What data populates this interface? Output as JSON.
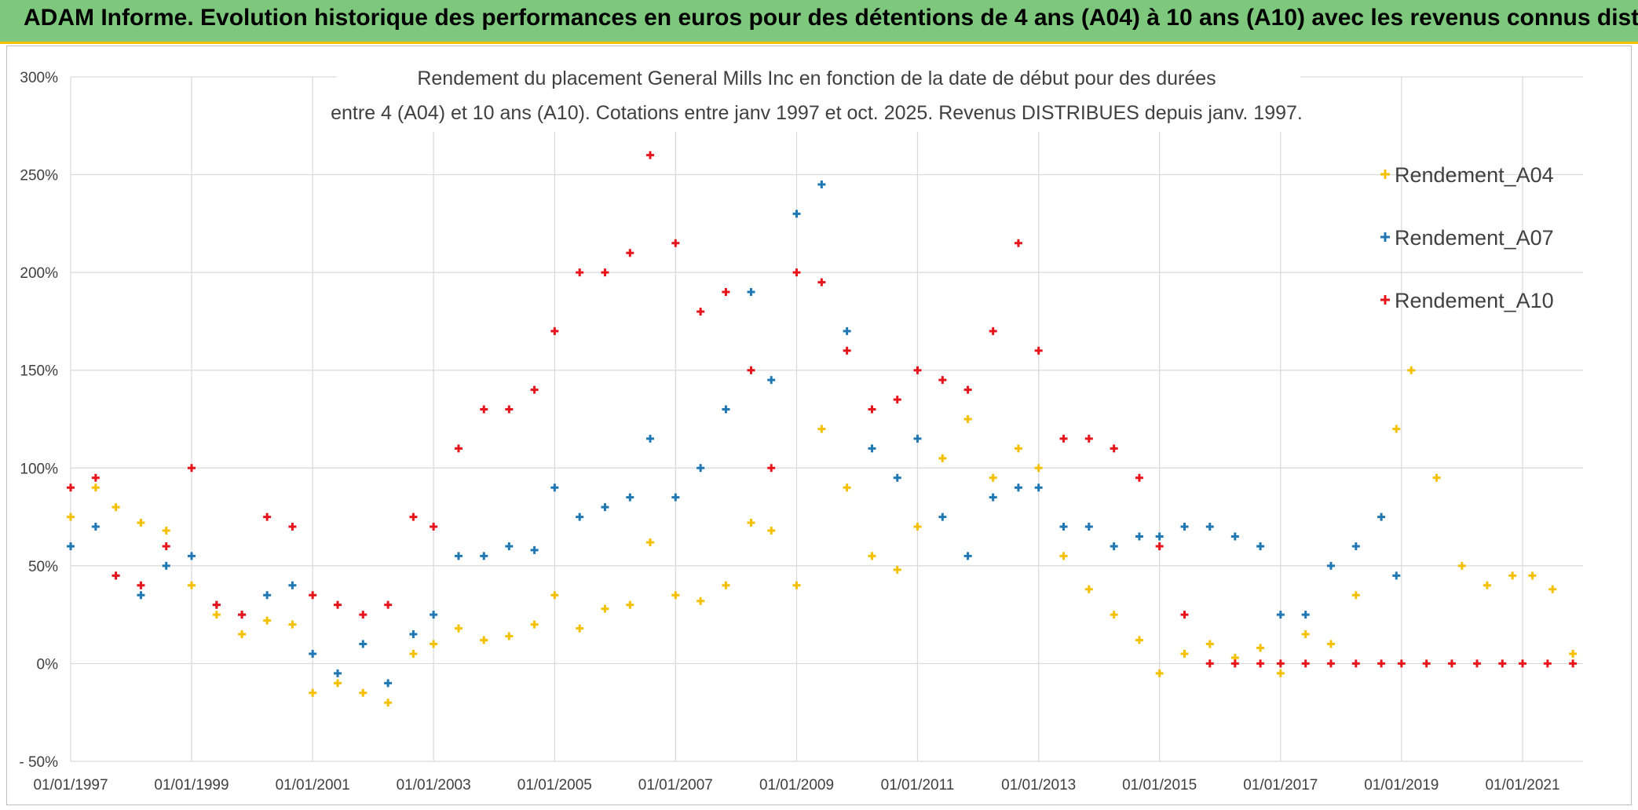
{
  "header": {
    "title": "ADAM Informe. Evolution historique des performances en euros pour des détentions de 4 ans (A04) à 10 ans (A10) avec les revenus connus distribués"
  },
  "colors": {
    "header_bg": "#7dc87d",
    "header_border": "#f5c000",
    "A04": "#f5c000",
    "A07": "#1f77b4",
    "A10": "#e8141c"
  },
  "chart_data": {
    "type": "scatter",
    "title_lines": [
      "Rendement du placement General Mills Inc en fonction de la date de début pour des durées",
      "entre 4 (A04) et 10 ans (A10). Cotations entre janv 1997 et oct. 2025. Revenus DISTRIBUES depuis janv. 1997."
    ],
    "xlim": [
      "1997-01-01",
      "2022-01-01"
    ],
    "ylim": [
      -50,
      300
    ],
    "x_ticks": [
      "01/01/1997",
      "01/01/1999",
      "01/01/2001",
      "01/01/2003",
      "01/01/2005",
      "01/01/2007",
      "01/01/2009",
      "01/01/2011",
      "01/01/2013",
      "01/01/2015",
      "01/01/2017",
      "01/01/2019",
      "01/01/2021"
    ],
    "y_ticks": [
      "- 50%",
      "0%",
      "50%",
      "100%",
      "150%",
      "200%",
      "250%",
      "300%"
    ],
    "legend_position": "top-right",
    "grid": true,
    "marker": "+",
    "series": [
      {
        "name": "Rendement_A04",
        "color": "#f5c000",
        "x": [
          "1997-01-01",
          "1997-06-01",
          "1997-10-01",
          "1998-03-01",
          "1998-08-01",
          "1999-01-01",
          "1999-06-01",
          "1999-11-01",
          "2000-04-01",
          "2000-09-01",
          "2001-01-01",
          "2001-06-01",
          "2001-11-01",
          "2002-04-01",
          "2002-09-01",
          "2003-01-01",
          "2003-06-01",
          "2003-11-01",
          "2004-04-01",
          "2004-09-01",
          "2005-01-01",
          "2005-06-01",
          "2005-11-01",
          "2006-04-01",
          "2006-08-01",
          "2007-01-01",
          "2007-06-01",
          "2007-11-01",
          "2008-04-01",
          "2008-08-01",
          "2009-01-01",
          "2009-06-01",
          "2009-11-01",
          "2010-04-01",
          "2010-09-01",
          "2011-01-01",
          "2011-06-01",
          "2011-11-01",
          "2012-04-01",
          "2012-09-01",
          "2013-01-01",
          "2013-06-01",
          "2013-11-01",
          "2014-04-01",
          "2014-09-01",
          "2015-01-01",
          "2015-06-01",
          "2015-11-01",
          "2016-04-01",
          "2016-09-01",
          "2017-01-01",
          "2017-06-01",
          "2017-11-01",
          "2018-04-01",
          "2018-09-01",
          "2018-12-01",
          "2019-03-01",
          "2019-08-01",
          "2020-01-01",
          "2020-06-01",
          "2020-11-01",
          "2021-03-01",
          "2021-07-01",
          "2021-11-01"
        ],
        "values": [
          75,
          90,
          80,
          72,
          68,
          40,
          25,
          15,
          22,
          20,
          -15,
          -10,
          -15,
          -20,
          5,
          10,
          18,
          12,
          14,
          20,
          35,
          18,
          28,
          30,
          62,
          35,
          32,
          40,
          72,
          68,
          40,
          120,
          90,
          55,
          48,
          70,
          105,
          125,
          95,
          110,
          100,
          55,
          38,
          25,
          12,
          -5,
          5,
          10,
          3,
          8,
          -5,
          15,
          10,
          35,
          75,
          120,
          150,
          95,
          50,
          40,
          45,
          45,
          38,
          5
        ]
      },
      {
        "name": "Rendement_A07",
        "color": "#1f77b4",
        "x": [
          "1997-01-01",
          "1997-06-01",
          "1997-10-01",
          "1998-03-01",
          "1998-08-01",
          "1999-01-01",
          "1999-06-01",
          "1999-11-01",
          "2000-04-01",
          "2000-09-01",
          "2001-01-01",
          "2001-06-01",
          "2001-11-01",
          "2002-04-01",
          "2002-09-01",
          "2003-01-01",
          "2003-06-01",
          "2003-11-01",
          "2004-04-01",
          "2004-09-01",
          "2005-01-01",
          "2005-06-01",
          "2005-11-01",
          "2006-04-01",
          "2006-08-01",
          "2007-01-01",
          "2007-06-01",
          "2007-11-01",
          "2008-04-01",
          "2008-08-01",
          "2009-01-01",
          "2009-06-01",
          "2009-11-01",
          "2010-04-01",
          "2010-09-01",
          "2011-01-01",
          "2011-06-01",
          "2011-11-01",
          "2012-04-01",
          "2012-09-01",
          "2013-01-01",
          "2013-06-01",
          "2013-11-01",
          "2014-04-01",
          "2014-09-01",
          "2015-01-01",
          "2015-06-01",
          "2015-11-01",
          "2016-04-01",
          "2016-09-01",
          "2017-01-01",
          "2017-06-01",
          "2017-11-01",
          "2018-04-01",
          "2018-09-01",
          "2018-12-01"
        ],
        "values": [
          60,
          70,
          45,
          35,
          50,
          55,
          30,
          25,
          35,
          40,
          5,
          -5,
          10,
          -10,
          15,
          25,
          55,
          55,
          60,
          58,
          90,
          75,
          80,
          85,
          115,
          85,
          100,
          130,
          190,
          145,
          230,
          245,
          170,
          110,
          95,
          115,
          75,
          55,
          85,
          90,
          90,
          70,
          70,
          60,
          65,
          65,
          70,
          70,
          65,
          60,
          25,
          25,
          50,
          60,
          75,
          45
        ]
      },
      {
        "name": "Rendement_A10",
        "color": "#e8141c",
        "x": [
          "1997-01-01",
          "1997-06-01",
          "1997-10-01",
          "1998-03-01",
          "1998-08-01",
          "1999-01-01",
          "1999-06-01",
          "1999-11-01",
          "2000-04-01",
          "2000-09-01",
          "2001-01-01",
          "2001-06-01",
          "2001-11-01",
          "2002-04-01",
          "2002-09-01",
          "2003-01-01",
          "2003-06-01",
          "2003-11-01",
          "2004-04-01",
          "2004-09-01",
          "2005-01-01",
          "2005-06-01",
          "2005-11-01",
          "2006-04-01",
          "2006-08-01",
          "2007-01-01",
          "2007-06-01",
          "2007-11-01",
          "2008-04-01",
          "2008-08-01",
          "2009-01-01",
          "2009-06-01",
          "2009-11-01",
          "2010-04-01",
          "2010-09-01",
          "2011-01-01",
          "2011-06-01",
          "2011-11-01",
          "2012-04-01",
          "2012-09-01",
          "2013-01-01",
          "2013-06-01",
          "2013-11-01",
          "2014-04-01",
          "2014-09-01",
          "2015-01-01",
          "2015-06-01",
          "2015-11-01",
          "2016-04-01",
          "2016-09-01",
          "2017-01-01",
          "2017-06-01",
          "2017-11-01",
          "2018-04-01",
          "2018-09-01",
          "2019-01-01",
          "2019-06-01",
          "2019-11-01",
          "2020-04-01",
          "2020-09-01",
          "2021-01-01",
          "2021-06-01",
          "2021-11-01"
        ],
        "values": [
          90,
          95,
          45,
          40,
          60,
          100,
          30,
          25,
          75,
          70,
          35,
          30,
          25,
          30,
          75,
          70,
          110,
          130,
          130,
          140,
          170,
          200,
          200,
          210,
          260,
          215,
          180,
          190,
          150,
          100,
          200,
          195,
          160,
          130,
          135,
          150,
          145,
          140,
          170,
          215,
          160,
          115,
          115,
          110,
          95,
          60,
          25,
          0,
          0,
          0,
          0,
          0,
          0,
          0,
          0,
          0,
          0,
          0,
          0,
          0,
          0,
          0,
          0
        ]
      }
    ]
  }
}
